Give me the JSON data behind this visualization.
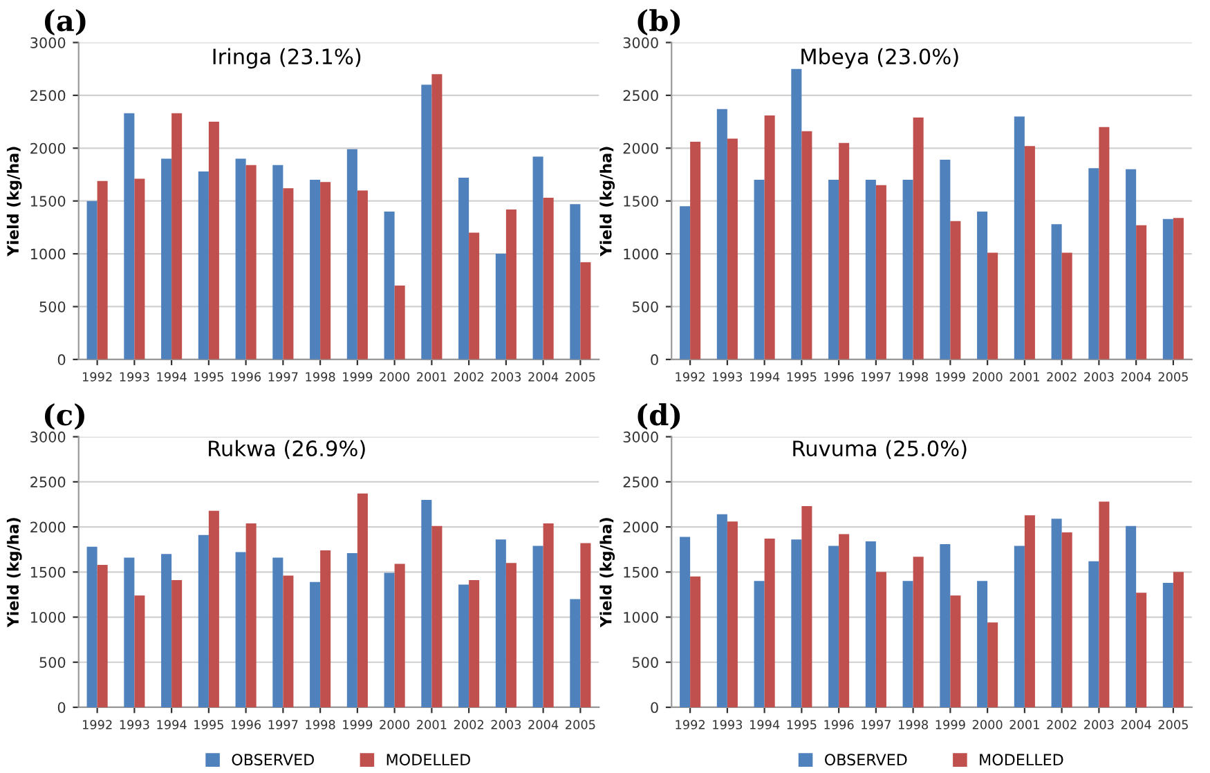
{
  "chart_data": [
    {
      "type": "bar",
      "title": "(a)",
      "subtitle": "Iringa (23.1%)",
      "ylabel": "Yield (kg/ha)",
      "categories": [
        "1992",
        "1993",
        "1994",
        "1995",
        "1996",
        "1997",
        "1998",
        "1999",
        "2000",
        "2001",
        "2002",
        "2003",
        "2004",
        "2005"
      ],
      "ylim": [
        0,
        3000
      ],
      "yticks": [
        0,
        500,
        1000,
        1500,
        2000,
        2500,
        3000
      ],
      "grid": "y",
      "legend": false,
      "series": [
        {
          "color": "#4f81bd",
          "values": [
            1500,
            2330,
            1900,
            1780,
            1900,
            1840,
            1700,
            1990,
            1400,
            2600,
            1720,
            1000,
            1920,
            1470
          ]
        },
        {
          "color": "#c0504d",
          "values": [
            1690,
            1710,
            2330,
            2250,
            1840,
            1620,
            1680,
            1600,
            700,
            2700,
            1200,
            1420,
            1530,
            920
          ]
        }
      ]
    },
    {
      "type": "bar",
      "title": "(b)",
      "subtitle": "Mbeya (23.0%)",
      "ylabel": "Yield (kg/ha)",
      "categories": [
        "1992",
        "1993",
        "1994",
        "1995",
        "1996",
        "1997",
        "1998",
        "1999",
        "2000",
        "2001",
        "2002",
        "2003",
        "2004",
        "2005"
      ],
      "ylim": [
        0,
        3000
      ],
      "yticks": [
        0,
        500,
        1000,
        1500,
        2000,
        2500,
        3000
      ],
      "grid": "y",
      "legend": false,
      "series": [
        {
          "color": "#4f81bd",
          "values": [
            1450,
            2370,
            1700,
            2750,
            1700,
            1700,
            1700,
            1890,
            1400,
            2300,
            1280,
            1810,
            1800,
            1330
          ]
        },
        {
          "color": "#c0504d",
          "values": [
            2060,
            2090,
            2310,
            2160,
            2050,
            1650,
            2290,
            1310,
            1010,
            2020,
            1010,
            2200,
            1270,
            1340
          ]
        }
      ]
    },
    {
      "type": "bar",
      "title": "(c)",
      "subtitle": "Rukwa (26.9%)",
      "ylabel": "Yield (kg/ha)",
      "categories": [
        "1992",
        "1993",
        "1994",
        "1995",
        "1996",
        "1997",
        "1998",
        "1999",
        "2000",
        "2001",
        "2002",
        "2003",
        "2004",
        "2005"
      ],
      "ylim": [
        0,
        3000
      ],
      "yticks": [
        0,
        500,
        1000,
        1500,
        2000,
        2500,
        3000
      ],
      "grid": "y",
      "legend": "bottom",
      "series": [
        {
          "name": "OBSERVED",
          "color": "#4f81bd",
          "values": [
            1780,
            1660,
            1700,
            1910,
            1720,
            1660,
            1390,
            1710,
            1490,
            2300,
            1360,
            1860,
            1790,
            1200
          ]
        },
        {
          "name": "MODELLED",
          "color": "#c0504d",
          "values": [
            1580,
            1240,
            1410,
            2180,
            2040,
            1460,
            1740,
            2370,
            1590,
            2010,
            1410,
            1600,
            2040,
            1820
          ]
        }
      ]
    },
    {
      "type": "bar",
      "title": "(d)",
      "subtitle": "Ruvuma (25.0%)",
      "ylabel": "Yield (kg/ha)",
      "categories": [
        "1992",
        "1993",
        "1994",
        "1995",
        "1996",
        "1997",
        "1998",
        "1999",
        "2000",
        "2001",
        "2002",
        "2003",
        "2004",
        "2005"
      ],
      "ylim": [
        0,
        3000
      ],
      "yticks": [
        0,
        500,
        1000,
        1500,
        2000,
        2500,
        3000
      ],
      "grid": "y",
      "legend": "bottom",
      "series": [
        {
          "name": "OBSERVED",
          "color": "#4f81bd",
          "values": [
            1890,
            2140,
            1400,
            1860,
            1790,
            1840,
            1400,
            1810,
            1400,
            1790,
            2090,
            1620,
            2010,
            1380
          ]
        },
        {
          "name": "MODELLED",
          "color": "#c0504d",
          "values": [
            1450,
            2060,
            1870,
            2230,
            1920,
            1500,
            1670,
            1240,
            940,
            2130,
            1940,
            2280,
            1270,
            1500
          ]
        }
      ]
    }
  ]
}
